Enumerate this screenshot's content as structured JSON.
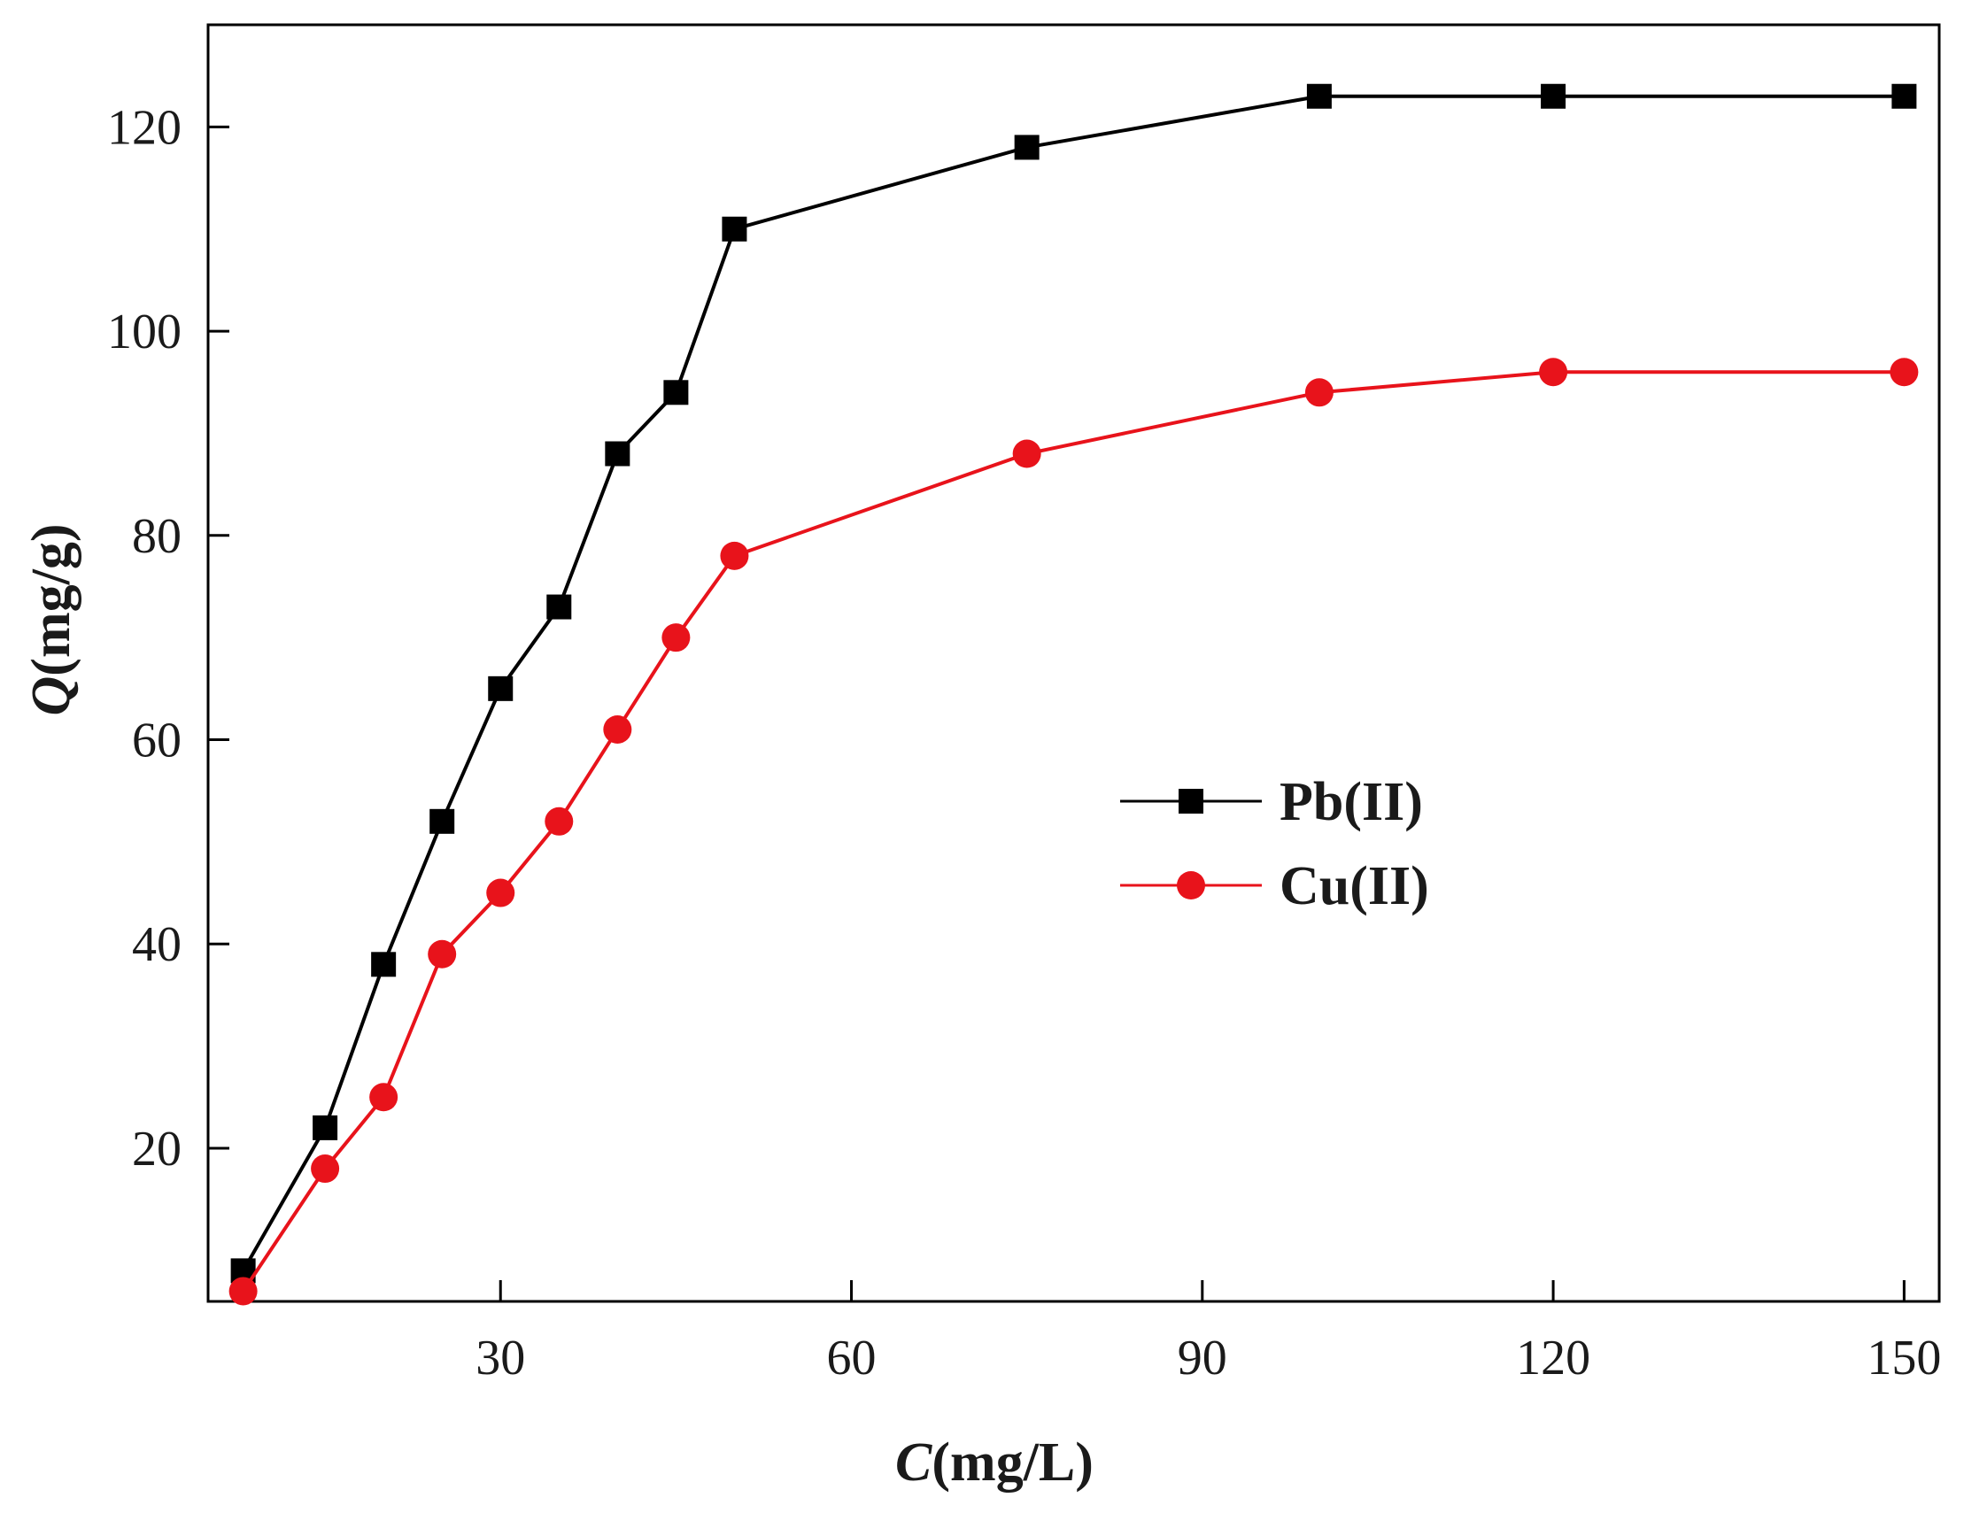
{
  "chart_data": {
    "type": "line",
    "title": "",
    "xlabel_var": "C",
    "xlabel_unit": "(mg/L)",
    "ylabel_var": "Q",
    "ylabel_unit": "(mg/g)",
    "xlim": [
      5,
      153
    ],
    "ylim": [
      5,
      130
    ],
    "xticks": [
      30,
      60,
      90,
      120,
      150
    ],
    "yticks": [
      20,
      40,
      60,
      80,
      100,
      120
    ],
    "grid": false,
    "legend_position": "center-right",
    "series": [
      {
        "name": "Pb(II)",
        "color": "#000000",
        "marker": "square",
        "x": [
          8,
          15,
          20,
          25,
          30,
          35,
          40,
          45,
          50,
          75,
          100,
          120,
          150
        ],
        "y": [
          8,
          22,
          38,
          52,
          65,
          73,
          88,
          94,
          110,
          118,
          123,
          123,
          123
        ]
      },
      {
        "name": "Cu(II)",
        "color": "#e8131b",
        "marker": "circle",
        "x": [
          8,
          15,
          20,
          25,
          30,
          35,
          40,
          45,
          50,
          75,
          100,
          120,
          150
        ],
        "y": [
          6,
          18,
          25,
          39,
          45,
          52,
          61,
          70,
          78,
          88,
          94,
          96,
          96
        ]
      }
    ]
  }
}
